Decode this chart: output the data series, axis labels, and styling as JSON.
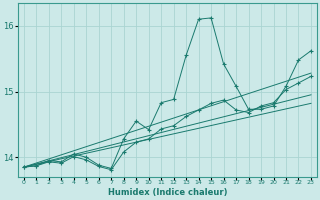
{
  "xlabel": "Humidex (Indice chaleur)",
  "ylabel": "",
  "xlim": [
    -0.5,
    23.5
  ],
  "ylim": [
    13.7,
    16.35
  ],
  "yticks": [
    14,
    15,
    16
  ],
  "xticks": [
    0,
    1,
    2,
    3,
    4,
    5,
    6,
    7,
    8,
    9,
    10,
    11,
    12,
    13,
    14,
    15,
    16,
    17,
    18,
    19,
    20,
    21,
    22,
    23
  ],
  "background_color": "#cce9e8",
  "grid_color": "#aad4d2",
  "line_color": "#1a7a6e",
  "lines": [
    {
      "x": [
        0,
        1,
        2,
        3,
        4,
        5,
        6,
        7,
        8,
        9,
        10,
        11,
        12,
        13,
        14,
        15,
        16,
        17,
        18,
        19,
        20,
        21,
        22,
        23
      ],
      "y": [
        13.85,
        13.87,
        13.95,
        13.93,
        14.05,
        14.0,
        13.88,
        13.83,
        14.28,
        14.55,
        14.42,
        14.83,
        14.88,
        15.55,
        16.1,
        16.12,
        15.42,
        15.08,
        14.73,
        14.73,
        14.78,
        15.08,
        15.48,
        15.62
      ]
    },
    {
      "x": [
        0,
        1,
        2,
        3,
        4,
        5,
        6,
        7,
        8,
        9,
        10,
        11,
        12,
        13,
        14,
        15,
        16,
        17,
        18,
        19,
        20,
        21,
        22,
        23
      ],
      "y": [
        13.85,
        13.87,
        13.93,
        13.91,
        14.01,
        13.96,
        13.86,
        13.81,
        14.08,
        14.23,
        14.28,
        14.43,
        14.48,
        14.62,
        14.72,
        14.82,
        14.87,
        14.72,
        14.68,
        14.78,
        14.83,
        15.03,
        15.13,
        15.23
      ]
    },
    {
      "x": [
        0,
        23
      ],
      "y": [
        13.85,
        14.82
      ]
    },
    {
      "x": [
        0,
        23
      ],
      "y": [
        13.85,
        14.95
      ]
    },
    {
      "x": [
        0,
        23
      ],
      "y": [
        13.85,
        15.28
      ]
    }
  ]
}
